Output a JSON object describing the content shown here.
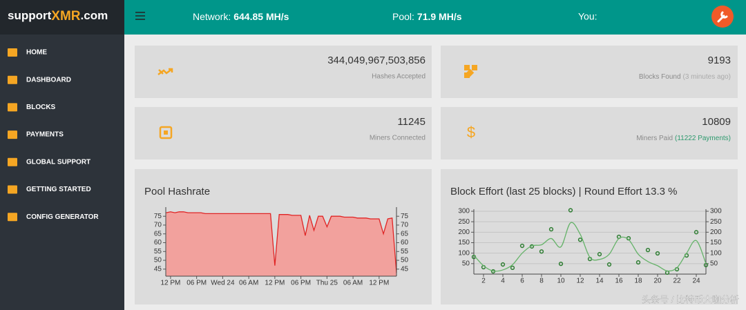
{
  "header": {
    "logo_a": "support",
    "logo_b": "XMR",
    "logo_c": ".com",
    "network_label": "Network:",
    "network_value": "644.85 MH/s",
    "pool_label": "Pool:",
    "pool_value": "71.9 MH/s",
    "you_label": "You:"
  },
  "menu": [
    "HOME",
    "DASHBOARD",
    "BLOCKS",
    "PAYMENTS",
    "GLOBAL SUPPORT",
    "GETTING STARTED",
    "CONFIG GENERATOR"
  ],
  "stats": [
    {
      "value": "344,049,967,503,856",
      "label": "Hashes Accepted"
    },
    {
      "value": "9193",
      "label": "Blocks Found",
      "note": "(3 minutes ago)"
    },
    {
      "value": "11245",
      "label": "Miners Connected"
    },
    {
      "value": "10809",
      "label": "Miners Paid",
      "note": "(11222 Payments)"
    }
  ],
  "chart_data": [
    {
      "type": "area",
      "title": "Pool Hashrate",
      "color": "#e02424",
      "fill": "#f2a19d",
      "x": [
        -1,
        0,
        1,
        2,
        3,
        4,
        5,
        6,
        7,
        8,
        9,
        10,
        11,
        12,
        13,
        14,
        15,
        16,
        17,
        18,
        19,
        20,
        21,
        22,
        23,
        24,
        25,
        26,
        27,
        28,
        29,
        30,
        31,
        32,
        33,
        34,
        35,
        36,
        37,
        38,
        39,
        40,
        41,
        42,
        43,
        44,
        45,
        46,
        47,
        48,
        49,
        50,
        51,
        52
      ],
      "values": [
        77,
        77.5,
        77,
        77.5,
        77.5,
        77,
        77,
        77,
        77,
        76.5,
        76.5,
        76.5,
        76.5,
        76.5,
        76.5,
        76.5,
        76.5,
        76.5,
        76.5,
        76.5,
        76.5,
        76.5,
        76.5,
        76.5,
        76.5,
        47,
        76,
        76,
        76,
        75.5,
        75.5,
        75.5,
        64,
        75.5,
        67,
        75,
        75,
        69,
        75,
        75,
        75,
        74.5,
        74.5,
        74.5,
        74,
        74,
        74,
        73.5,
        73.5,
        73.5,
        65,
        73.5,
        74,
        43
      ],
      "xlim": [
        -1.1,
        52
      ],
      "xticks": [
        {
          "value": 0,
          "label": "12 PM"
        },
        {
          "value": 6,
          "label": "06 PM"
        },
        {
          "value": 12,
          "label": "Wed 24"
        },
        {
          "value": 18,
          "label": "06 AM"
        },
        {
          "value": 24,
          "label": "12 PM"
        },
        {
          "value": 30,
          "label": "06 PM"
        },
        {
          "value": 36,
          "label": "Thu 25"
        },
        {
          "value": 42,
          "label": "06 AM"
        },
        {
          "value": 48,
          "label": "12 PM"
        }
      ],
      "ylim": [
        41,
        79
      ],
      "yticks": [
        45,
        50,
        55,
        60,
        65,
        70,
        75
      ],
      "y2lim": [
        41,
        79
      ],
      "y2ticks": [
        45,
        50,
        55,
        60,
        65,
        70,
        75
      ],
      "grid": false
    },
    {
      "type": "line",
      "title": "Block Effort (last 25 blocks) | Round Effort 13.3 %",
      "x": [
        1,
        2,
        3,
        4,
        5,
        6,
        7,
        8,
        9,
        10,
        11,
        12,
        13,
        14,
        15,
        16,
        17,
        18,
        19,
        20,
        21,
        22,
        23,
        24,
        25
      ],
      "series": [
        {
          "color": "#2e7d32",
          "style": "markers",
          "values": [
            82,
            33,
            13,
            46,
            30,
            135,
            132,
            108,
            214,
            49,
            305,
            164,
            72,
            95,
            46,
            178,
            171,
            56,
            115,
            99,
            7,
            23,
            89,
            200,
            43
          ]
        },
        {
          "color": "#66b36a",
          "style": "smooth",
          "values": [
            90,
            40,
            15,
            20,
            45,
            100,
            135,
            140,
            170,
            130,
            245,
            190,
            80,
            70,
            95,
            170,
            165,
            95,
            60,
            40,
            15,
            30,
            100,
            160,
            50
          ]
        }
      ],
      "xlim": [
        1,
        25
      ],
      "xticks": [
        2,
        4,
        6,
        8,
        10,
        12,
        14,
        16,
        18,
        20,
        22,
        24
      ],
      "ylim": [
        0,
        300
      ],
      "yticks": [
        50,
        100,
        150,
        200,
        250,
        300
      ],
      "y2lim": [
        0,
        300
      ],
      "y2ticks": [
        50,
        100,
        150,
        200,
        250,
        300
      ],
      "grid": true
    }
  ],
  "watermark": "头条号 / 比特币大咖分析"
}
